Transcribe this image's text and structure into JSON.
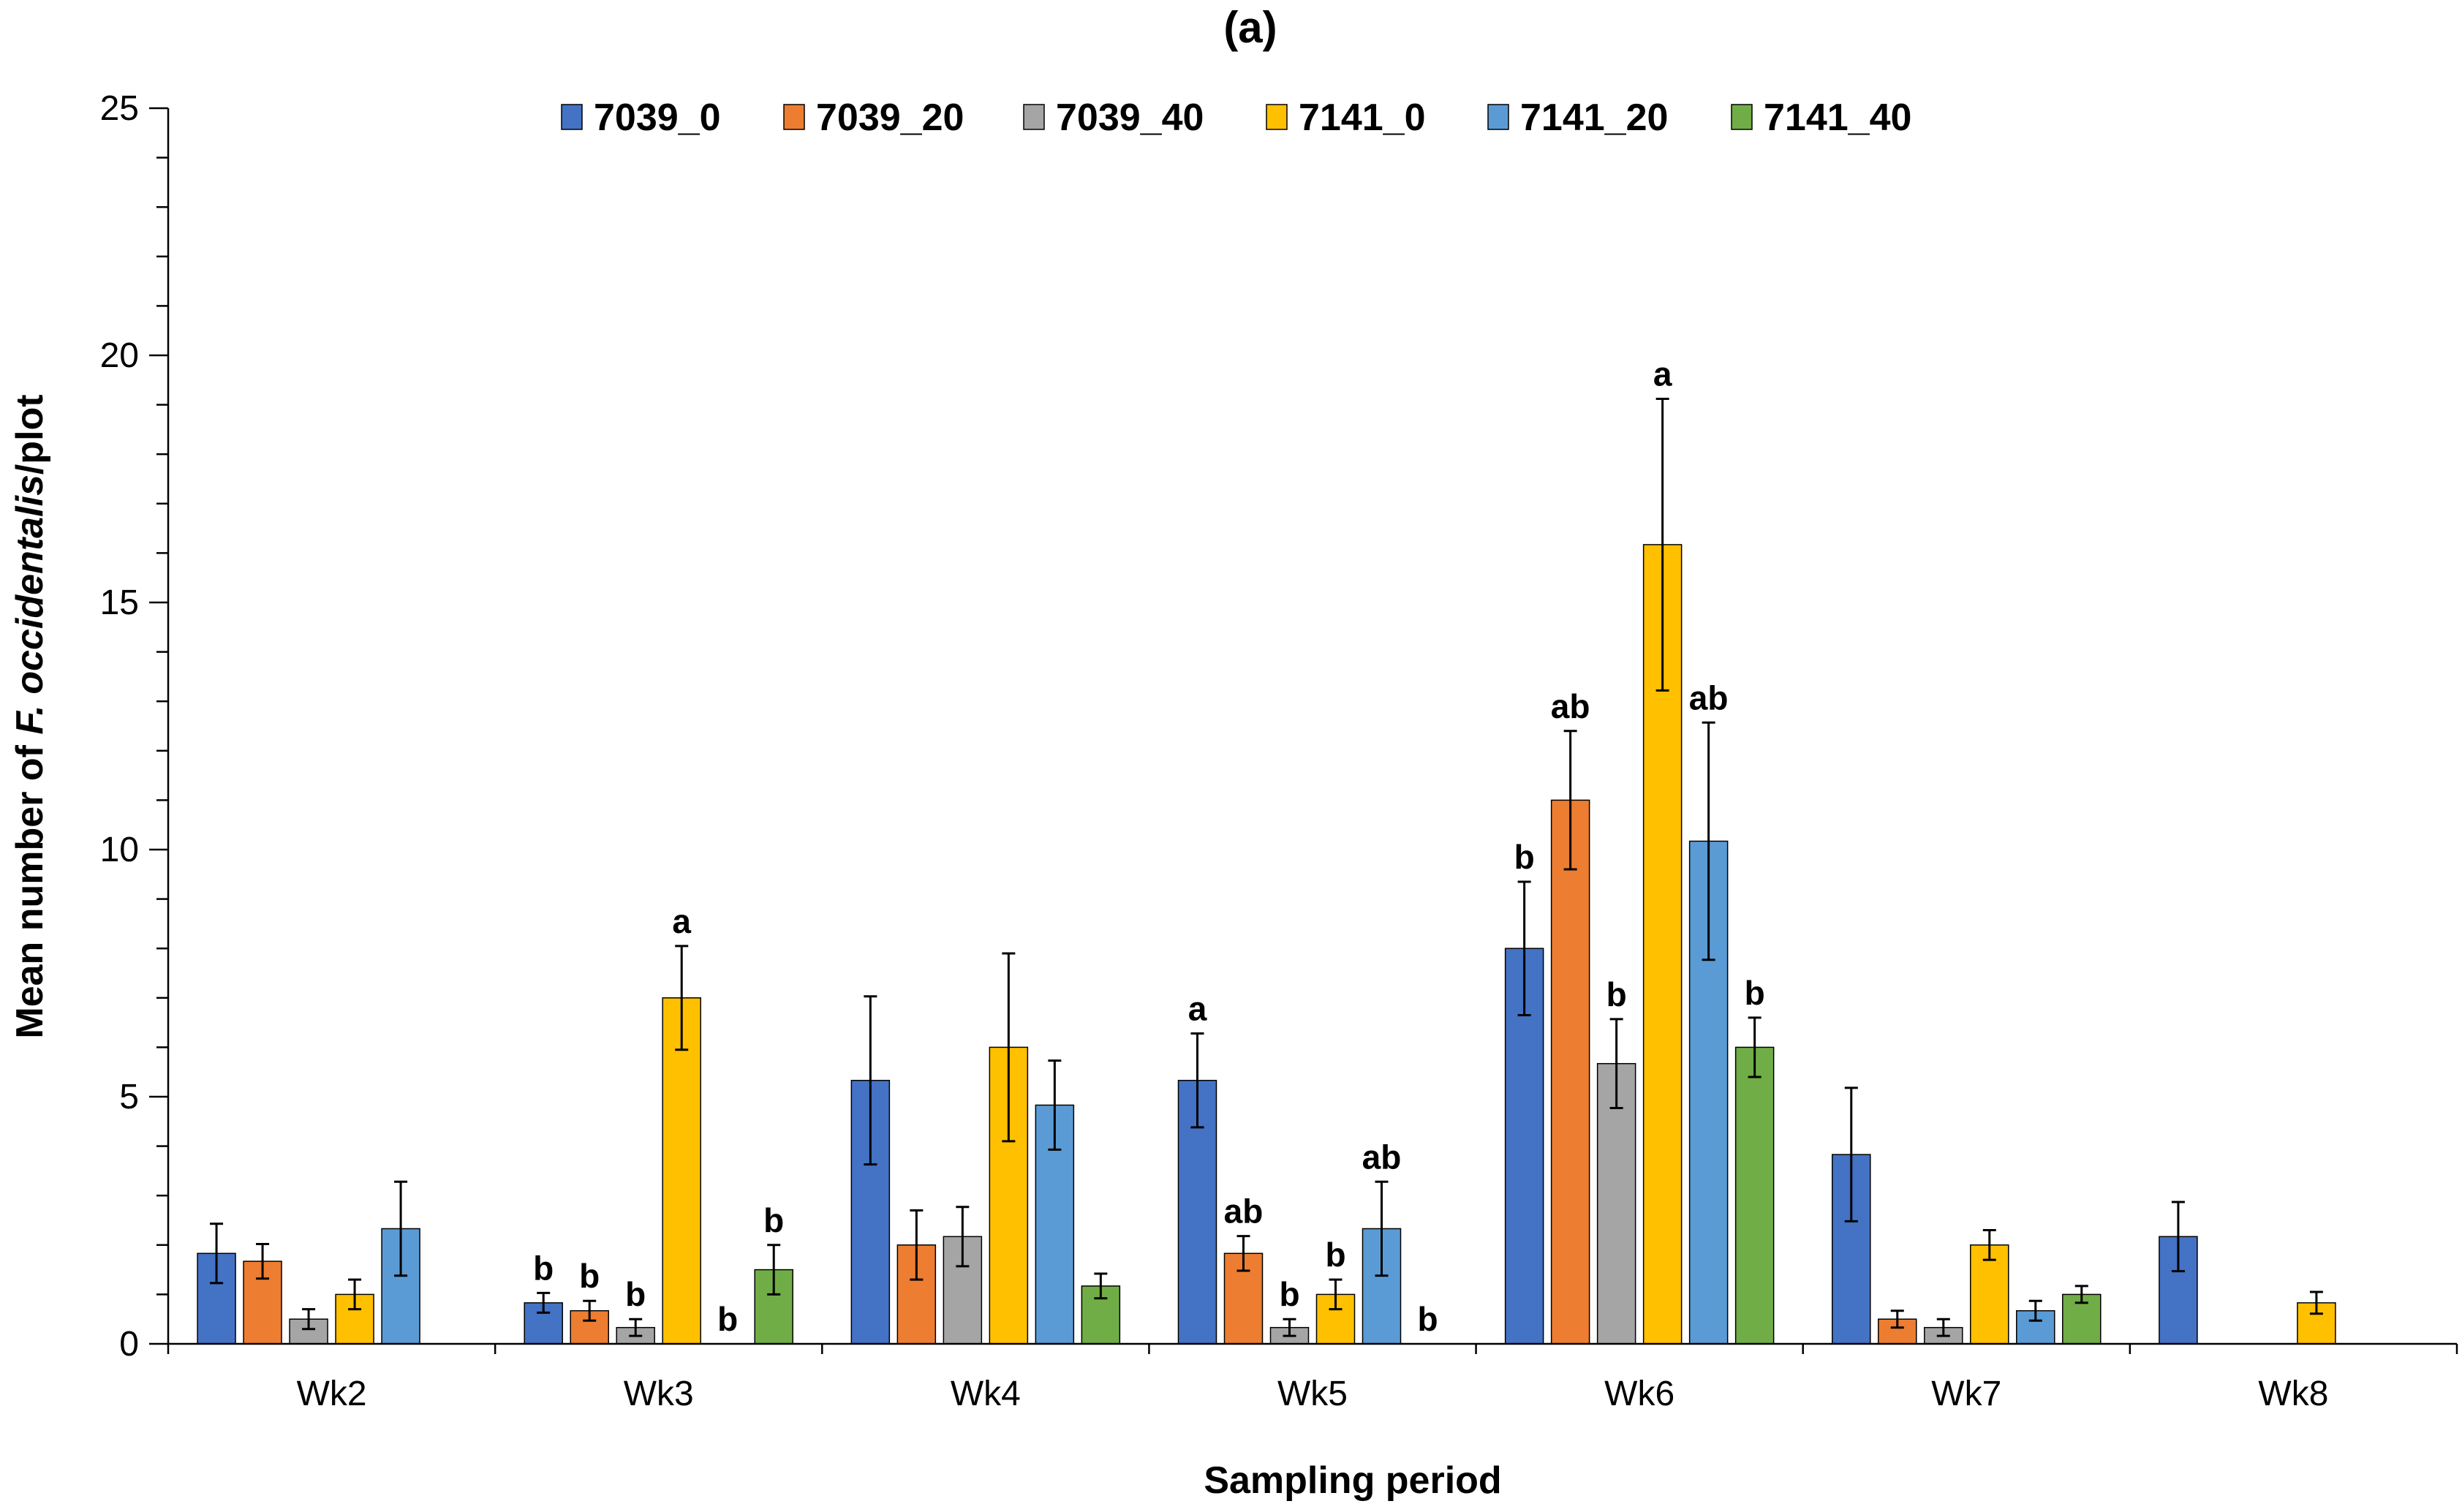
{
  "chart_data": {
    "type": "bar",
    "title": "(a)",
    "xlabel": "Sampling period",
    "ylabel_parts": [
      "Mean number of ",
      "F. occidentalis",
      "/plot"
    ],
    "ylim": [
      0,
      25
    ],
    "yticks": [
      "0",
      "5",
      "10",
      "15",
      "20",
      "25"
    ],
    "legend_position": "top",
    "categories": [
      "Wk2",
      "Wk3",
      "Wk4",
      "Wk5",
      "Wk6",
      "Wk7",
      "Wk8"
    ],
    "series": [
      {
        "name": "7039_0",
        "color": "#4472C4",
        "values": [
          1.83,
          0.83,
          5.33,
          5.33,
          8.0,
          3.83,
          2.17
        ],
        "errors": [
          0.6,
          0.2,
          1.7,
          0.95,
          1.35,
          1.35,
          0.7
        ],
        "labels": [
          "",
          "b",
          "",
          "a",
          "b",
          "",
          ""
        ]
      },
      {
        "name": "7039_20",
        "color": "#ED7D31",
        "values": [
          1.67,
          0.67,
          2.0,
          1.83,
          11.0,
          0.5,
          0.0
        ],
        "errors": [
          0.35,
          0.2,
          0.7,
          0.35,
          1.4,
          0.17,
          0.0
        ],
        "labels": [
          "",
          "b",
          "",
          "ab",
          "ab",
          "",
          ""
        ]
      },
      {
        "name": "7039_40",
        "color": "#A5A5A5",
        "values": [
          0.5,
          0.33,
          2.17,
          0.33,
          5.67,
          0.33,
          0.0
        ],
        "errors": [
          0.2,
          0.17,
          0.6,
          0.17,
          0.9,
          0.17,
          0.0
        ],
        "labels": [
          "",
          "b",
          "",
          "b",
          "b",
          "",
          ""
        ]
      },
      {
        "name": "7141_0",
        "color": "#FFC000",
        "values": [
          1.0,
          7.0,
          6.0,
          1.0,
          16.17,
          2.0,
          0.83
        ],
        "errors": [
          0.3,
          1.05,
          1.9,
          0.3,
          2.95,
          0.3,
          0.22
        ],
        "labels": [
          "",
          "a",
          "",
          "b",
          "a",
          "",
          ""
        ]
      },
      {
        "name": "7141_20",
        "color": "#5B9BD5",
        "values": [
          2.33,
          0.0,
          4.83,
          2.33,
          10.17,
          0.67,
          0.0
        ],
        "errors": [
          0.95,
          0.0,
          0.9,
          0.95,
          2.4,
          0.2,
          0.0
        ],
        "labels": [
          "",
          "b",
          "",
          "ab",
          "ab",
          "",
          ""
        ]
      },
      {
        "name": "7141_40",
        "color": "#70AD47",
        "values": [
          0.0,
          1.5,
          1.17,
          0.0,
          6.0,
          1.0,
          0.0
        ],
        "errors": [
          0.0,
          0.5,
          0.25,
          0.0,
          0.6,
          0.17,
          0.0
        ],
        "labels": [
          "",
          "b",
          "",
          "b",
          "b",
          "",
          ""
        ]
      }
    ]
  }
}
